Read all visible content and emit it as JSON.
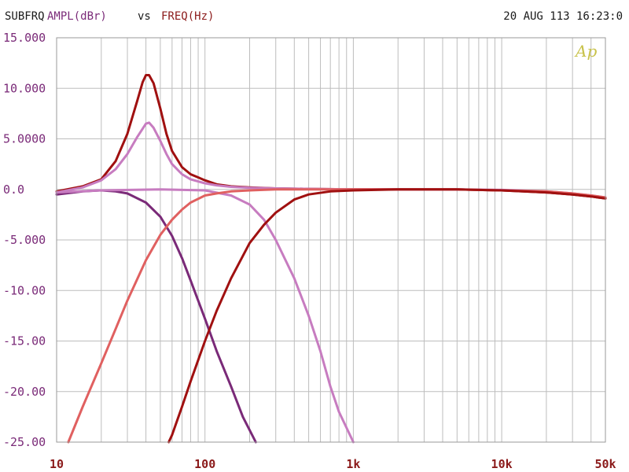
{
  "header": {
    "name": "SUBFRQ",
    "yquantity": "AMPL(dBr)",
    "vs": "vs",
    "xquantity": "FREQ(Hz)",
    "timestamp": "20 AUG 113 16:23:0",
    "logo": "Ap"
  },
  "colors": {
    "text_dark": "#1a1a1a",
    "label_purple": "#7a2a78",
    "label_red": "#8b1a1a",
    "grid": "#bdbdbd",
    "logo": "#c8c24a"
  },
  "chart_data": {
    "type": "line",
    "xscale": "log",
    "xlim": [
      10,
      50000
    ],
    "ylim": [
      -25,
      15
    ],
    "grid": true,
    "yticks": [
      {
        "value": 15,
        "label": "15.000"
      },
      {
        "value": 10,
        "label": "10.000"
      },
      {
        "value": 5,
        "label": "5.0000"
      },
      {
        "value": 0,
        "label": "0.0"
      },
      {
        "value": -5,
        "label": "-5.000"
      },
      {
        "value": -10,
        "label": "-10.00"
      },
      {
        "value": -15,
        "label": "-15.00"
      },
      {
        "value": -20,
        "label": "-20.00"
      },
      {
        "value": -25,
        "label": "-25.00"
      }
    ],
    "xticks": [
      {
        "value": 10,
        "label": "10"
      },
      {
        "value": 100,
        "label": "100"
      },
      {
        "value": 1000,
        "label": "1k"
      },
      {
        "value": 10000,
        "label": "10k"
      },
      {
        "value": 50000,
        "label": "50k"
      }
    ],
    "series": [
      {
        "color": "#a01010",
        "x": [
          10,
          15,
          20,
          25,
          30,
          35,
          38,
          40,
          42,
          45,
          50,
          55,
          60,
          70,
          80,
          100,
          120,
          150,
          200,
          300,
          500,
          1000,
          2000,
          5000,
          10000,
          20000,
          30000,
          40000,
          50000
        ],
        "y": [
          -0.2,
          0.3,
          1.0,
          2.8,
          5.5,
          8.8,
          10.6,
          11.3,
          11.3,
          10.5,
          8.0,
          5.5,
          3.8,
          2.2,
          1.5,
          0.9,
          0.5,
          0.3,
          0.2,
          0.1,
          0.05,
          0.0,
          0.0,
          0.0,
          -0.1,
          -0.3,
          -0.5,
          -0.7,
          -0.9
        ]
      },
      {
        "color": "#c77cc0",
        "x": [
          10,
          15,
          20,
          25,
          30,
          35,
          40,
          42,
          45,
          50,
          55,
          60,
          70,
          80,
          100,
          120,
          150,
          200,
          300,
          500,
          1000,
          2000,
          5000,
          10000,
          20000,
          30000,
          40000,
          50000
        ],
        "y": [
          -0.3,
          0.2,
          0.9,
          2.0,
          3.5,
          5.2,
          6.5,
          6.6,
          6.1,
          4.8,
          3.5,
          2.5,
          1.5,
          1.0,
          0.6,
          0.4,
          0.25,
          0.15,
          0.1,
          0.05,
          0.0,
          0.0,
          0.0,
          -0.05,
          -0.2,
          -0.4,
          -0.6,
          -0.8
        ]
      },
      {
        "color": "#7a2a78",
        "x": [
          10,
          15,
          20,
          25,
          30,
          40,
          50,
          60,
          70,
          80,
          100,
          120,
          150,
          180,
          220
        ],
        "y": [
          -0.5,
          -0.2,
          -0.1,
          -0.2,
          -0.4,
          -1.3,
          -2.7,
          -4.6,
          -6.8,
          -9.0,
          -12.8,
          -16.0,
          -19.5,
          -22.5,
          -25
        ]
      },
      {
        "color": "#c77cc0",
        "x": [
          10,
          20,
          50,
          100,
          150,
          200,
          250,
          300,
          400,
          500,
          600,
          700,
          800,
          1000
        ],
        "y": [
          -0.3,
          -0.1,
          0.0,
          -0.1,
          -0.6,
          -1.5,
          -3.0,
          -5.0,
          -8.8,
          -12.5,
          -16.0,
          -19.5,
          -22.0,
          -25
        ]
      },
      {
        "color": "#e06060",
        "x": [
          12,
          15,
          20,
          25,
          30,
          40,
          50,
          60,
          70,
          80,
          100,
          120,
          150,
          200,
          300,
          500,
          1000,
          2000,
          5000,
          10000,
          20000,
          30000,
          40000,
          50000
        ],
        "y": [
          -25,
          -21.5,
          -17.2,
          -13.8,
          -11.0,
          -7.0,
          -4.5,
          -3.0,
          -2.0,
          -1.3,
          -0.6,
          -0.4,
          -0.2,
          -0.1,
          0.0,
          0.0,
          0.0,
          0.0,
          0.0,
          -0.1,
          -0.2,
          -0.4,
          -0.6,
          -0.8
        ]
      },
      {
        "color": "#a01010",
        "x": [
          57,
          60,
          70,
          80,
          100,
          120,
          150,
          200,
          250,
          300,
          400,
          500,
          700,
          1000,
          2000,
          5000,
          10000,
          20000,
          30000,
          40000,
          50000
        ],
        "y": [
          -25,
          -24.3,
          -21.5,
          -19.0,
          -15.0,
          -12.0,
          -8.8,
          -5.3,
          -3.5,
          -2.3,
          -1.0,
          -0.5,
          -0.2,
          -0.1,
          0.0,
          0.0,
          -0.1,
          -0.3,
          -0.5,
          -0.7,
          -0.9
        ]
      }
    ]
  }
}
